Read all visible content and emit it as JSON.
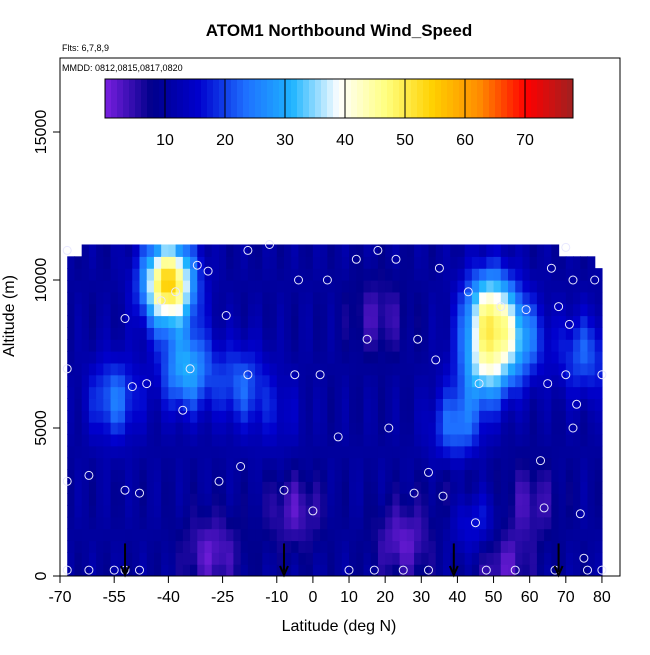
{
  "chart_data": {
    "type": "heatmap",
    "title": "ATOM1 Northbound Wind_Speed",
    "note_flights": "Flts: 6,7,8,9",
    "note_dates": "MMDD: 0812,0815,0817,0820",
    "xlabel": "Latitude (deg N)",
    "ylabel": "Altitude (m)",
    "xlim": [
      -70,
      85
    ],
    "ylim": [
      0,
      17500
    ],
    "x_ticks": [
      -70,
      -55,
      -40,
      -25,
      -10,
      0,
      10,
      20,
      30,
      40,
      50,
      60,
      70,
      80
    ],
    "x_tick_labels": [
      "-70",
      "-55",
      "-40",
      "-25",
      "-10",
      "0",
      "10",
      "20",
      "30",
      "40",
      "50",
      "60",
      "70",
      "80"
    ],
    "y_ticks": [
      0,
      5000,
      10000,
      15000
    ],
    "y_tick_labels": [
      "0",
      "5000",
      "10000",
      "15000"
    ],
    "colorbar": {
      "min": 0,
      "max": 78,
      "ticks": [
        10,
        20,
        30,
        40,
        50,
        60,
        70
      ],
      "tick_labels": [
        "10",
        "20",
        "30",
        "40",
        "50",
        "60",
        "70"
      ],
      "colors": [
        "#7a1fe0",
        "#00008b",
        "#0000cd",
        "#1e6fff",
        "#1eb4ff",
        "#ffffff",
        "#ffff80",
        "#ffd000",
        "#ff8c00",
        "#ff0000",
        "#a02020"
      ]
    },
    "grid": false,
    "legend": "top (horizontal colorbar inside plot)",
    "data_extent": {
      "lat_min": -68,
      "lat_max": 80,
      "alt_max": 11000
    },
    "hotspots": [
      {
        "lat": -40,
        "alt": 9900,
        "speed": 55
      },
      {
        "lat": -35,
        "alt": 7000,
        "speed": 30
      },
      {
        "lat": 49,
        "alt": 9000,
        "speed": 40
      },
      {
        "lat": 48,
        "alt": 7200,
        "speed": 35
      },
      {
        "lat": 40,
        "alt": 5000,
        "speed": 25
      },
      {
        "lat": 57,
        "alt": 8000,
        "speed": 26
      },
      {
        "lat": -55,
        "alt": 6000,
        "speed": 24
      },
      {
        "lat": -20,
        "alt": 6500,
        "speed": 22
      },
      {
        "lat": -10,
        "alt": 5500,
        "speed": 15
      },
      {
        "lat": 45,
        "alt": 2000,
        "speed": 20
      },
      {
        "lat": 75,
        "alt": 7500,
        "speed": 22
      }
    ],
    "coldspots": [
      {
        "lat": -28,
        "alt": 800,
        "speed": 2
      },
      {
        "lat": -5,
        "alt": 2200,
        "speed": 3
      },
      {
        "lat": 25,
        "alt": 1200,
        "speed": 2
      },
      {
        "lat": 42,
        "alt": 3200,
        "speed": 3
      },
      {
        "lat": 52,
        "alt": 400,
        "speed": 2
      },
      {
        "lat": 18,
        "alt": 8800,
        "speed": 4
      },
      {
        "lat": 60,
        "alt": 2500,
        "speed": 4
      }
    ],
    "points": [
      [
        -68,
        11000
      ],
      [
        -68,
        7000
      ],
      [
        -68,
        3200
      ],
      [
        -68,
        200
      ],
      [
        -62,
        200
      ],
      [
        -62,
        3400
      ],
      [
        -55,
        200
      ],
      [
        -52,
        200
      ],
      [
        -48,
        200
      ],
      [
        -52,
        2900
      ],
      [
        -48,
        2800
      ],
      [
        -52,
        8700
      ],
      [
        -50,
        6400
      ],
      [
        -46,
        6500
      ],
      [
        -42,
        9300
      ],
      [
        -38,
        9600
      ],
      [
        -36,
        5600
      ],
      [
        -34,
        7000
      ],
      [
        -32,
        10500
      ],
      [
        -29,
        10300
      ],
      [
        -26,
        3200
      ],
      [
        -24,
        8800
      ],
      [
        -20,
        3700
      ],
      [
        -18,
        6800
      ],
      [
        -18,
        11000
      ],
      [
        -12,
        11200
      ],
      [
        -8,
        2900
      ],
      [
        -5,
        6800
      ],
      [
        -4,
        10000
      ],
      [
        0,
        2200
      ],
      [
        2,
        6800
      ],
      [
        4,
        10000
      ],
      [
        7,
        4700
      ],
      [
        10,
        200
      ],
      [
        12,
        10700
      ],
      [
        15,
        8000
      ],
      [
        17,
        200
      ],
      [
        18,
        11000
      ],
      [
        21,
        5000
      ],
      [
        23,
        10700
      ],
      [
        25,
        200
      ],
      [
        28,
        2800
      ],
      [
        29,
        8000
      ],
      [
        32,
        200
      ],
      [
        32,
        3500
      ],
      [
        34,
        7300
      ],
      [
        35,
        10400
      ],
      [
        36,
        2700
      ],
      [
        43,
        9600
      ],
      [
        45,
        1800
      ],
      [
        46,
        6500
      ],
      [
        48,
        200
      ],
      [
        52,
        9100
      ],
      [
        56,
        200
      ],
      [
        59,
        9000
      ],
      [
        63,
        3900
      ],
      [
        64,
        2300
      ],
      [
        65,
        6500
      ],
      [
        66,
        10400
      ],
      [
        67,
        200
      ],
      [
        68,
        9100
      ],
      [
        70,
        11100
      ],
      [
        70,
        6800
      ],
      [
        71,
        8500
      ],
      [
        72,
        5000
      ],
      [
        72,
        10000
      ],
      [
        73,
        5800
      ],
      [
        74,
        2100
      ],
      [
        75,
        600
      ],
      [
        76,
        200
      ],
      [
        78,
        10000
      ],
      [
        80,
        6800
      ],
      [
        80,
        200
      ]
    ],
    "arrow_latitudes": [
      -52,
      -8,
      39,
      68
    ]
  }
}
